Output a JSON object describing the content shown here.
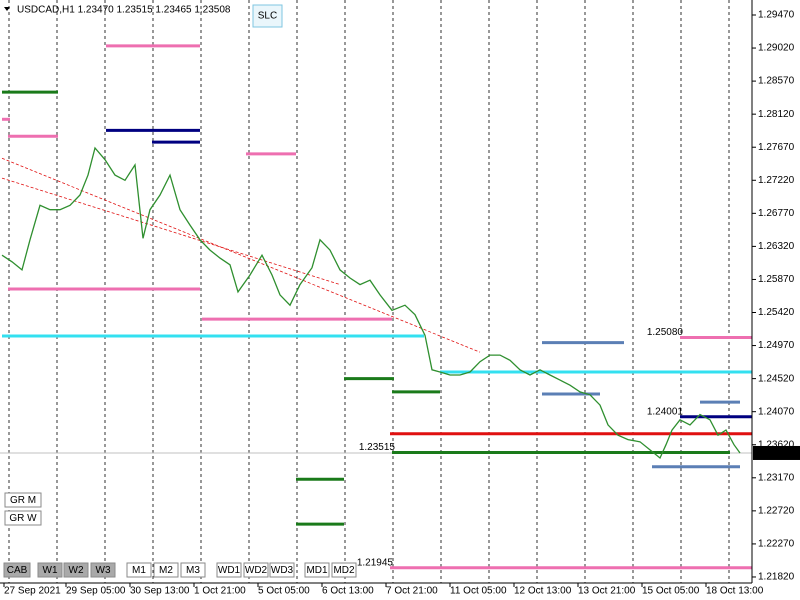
{
  "chart_data": {
    "type": "line",
    "title": "USDCAD,H1  1.23470 1.23515 1.23465 1.23508",
    "button": "SLC",
    "side_buttons": [
      "GR M",
      "GR W"
    ],
    "bottom_buttons": [
      "CAB",
      "W1",
      "W2",
      "W3",
      "M1",
      "M2",
      "M3",
      "WD1",
      "WD2",
      "WD3",
      "MD1",
      "MD2"
    ],
    "active_buttons": [
      "CAB",
      "W1",
      "W2",
      "W3"
    ],
    "color": "#2f8f2f",
    "x": [
      0,
      5,
      10,
      14,
      19,
      24,
      29,
      34,
      39,
      43,
      46.5,
      51.5,
      56.5,
      61.5,
      66.5,
      70.5,
      74,
      79,
      84,
      89,
      94,
      99,
      104,
      109,
      114,
      118,
      124,
      130,
      135,
      139,
      144,
      149,
      155,
      159,
      164,
      169,
      174,
      179,
      184,
      189,
      195,
      201.5,
      206.5,
      211.5,
      215,
      219,
      224,
      229,
      234,
      239,
      244,
      249,
      254,
      259,
      264,
      269,
      274,
      279,
      284,
      289,
      294,
      299,
      303,
      308,
      313,
      319,
      324,
      329,
      332,
      335,
      339,
      344,
      349,
      354,
      358,
      362,
      366,
      369
    ],
    "values": [
      1.262,
      1.2611,
      1.26,
      1.2641,
      1.2688,
      1.2682,
      1.2682,
      1.2688,
      1.2702,
      1.2729,
      1.2766,
      1.275,
      1.2729,
      1.2722,
      1.2743,
      1.2643,
      1.2682,
      1.2702,
      1.2729,
      1.2682,
      1.2661,
      1.2641,
      1.2627,
      1.2616,
      1.2607,
      1.257,
      1.2593,
      1.262,
      1.2593,
      1.2566,
      1.2552,
      1.258,
      1.2603,
      1.2641,
      1.2627,
      1.26,
      1.2589,
      1.258,
      1.2586,
      1.2566,
      1.2545,
      1.2552,
      1.2539,
      1.2511,
      1.2464,
      1.2461,
      1.2457,
      1.2457,
      1.2461,
      1.2475,
      1.2484,
      1.2484,
      1.2477,
      1.2464,
      1.2457,
      1.2464,
      1.2457,
      1.245,
      1.2443,
      1.2434,
      1.243,
      1.2416,
      1.2389,
      1.2375,
      1.2369,
      1.2366,
      1.2355,
      1.2344,
      1.2362,
      1.2382,
      1.2396,
      1.2389,
      1.2403,
      1.2396,
      1.2375,
      1.2382,
      1.2362,
      1.23508
    ],
    "bid": 1.23508,
    "xlim": [
      -1,
      375
    ],
    "ylim": [
      1.21738,
      1.29674
    ],
    "xticks": [
      {
        "value": 1,
        "label": "27 Sep 2021"
      },
      {
        "value": 32,
        "label": "29 Sep 05:00"
      },
      {
        "value": 64,
        "label": "30 Sep 13:00"
      },
      {
        "value": 96,
        "label": "1 Oct 21:00"
      },
      {
        "value": 128,
        "label": "5 Oct 05:00"
      },
      {
        "value": 160,
        "label": "6 Oct 13:00"
      },
      {
        "value": 192,
        "label": "7 Oct 21:00"
      },
      {
        "value": 224,
        "label": "11 Oct 05:00"
      },
      {
        "value": 256,
        "label": "12 Oct 13:00"
      },
      {
        "value": 288,
        "label": "13 Oct 21:00"
      },
      {
        "value": 320,
        "label": "15 Oct 05:00"
      },
      {
        "value": 352,
        "label": "18 Oct 13:00"
      }
    ],
    "yticks": [
      {
        "value": 1.2947,
        "label": "1.29470"
      },
      {
        "value": 1.2902,
        "label": "1.29020"
      },
      {
        "value": 1.2857,
        "label": "1.28570"
      },
      {
        "value": 1.2812,
        "label": "1.28120"
      },
      {
        "value": 1.2767,
        "label": "1.27670"
      },
      {
        "value": 1.2722,
        "label": "1.27220"
      },
      {
        "value": 1.2677,
        "label": "1.26770"
      },
      {
        "value": 1.2632,
        "label": "1.26320"
      },
      {
        "value": 1.2587,
        "label": "1.25870"
      },
      {
        "value": 1.2542,
        "label": "1.25420"
      },
      {
        "value": 1.2497,
        "label": "1.24970"
      },
      {
        "value": 1.2452,
        "label": "1.24520"
      },
      {
        "value": 1.2407,
        "label": "1.24070"
      },
      {
        "value": 1.2362,
        "label": "1.23620"
      },
      {
        "value": 1.2317,
        "label": "1.23170"
      },
      {
        "value": 1.2272,
        "label": "1.22720"
      },
      {
        "value": 1.2227,
        "label": "1.22270"
      },
      {
        "value": 1.2182,
        "label": "1.21820"
      }
    ],
    "separators": [
      3.5,
      27.5,
      51.5,
      75.5,
      99.5,
      123.5,
      147.5,
      171.5,
      195.5,
      219.5,
      243.5,
      267.5,
      291.5,
      315.5,
      339.5,
      363.5
    ],
    "levels": [
      {
        "color": "#ee6fb0",
        "price": 1.2905,
        "x": [
          52,
          99
        ]
      },
      {
        "color": "#1a7a1a",
        "price": 1.2842,
        "x": [
          0,
          28
        ]
      },
      {
        "color": "#ee6fb0",
        "price": 1.2805,
        "x": [
          0,
          4
        ]
      },
      {
        "color": "#ee6fb0",
        "price": 1.2782,
        "x": [
          3,
          28
        ]
      },
      {
        "color": "#000080",
        "price": 1.279,
        "x": [
          52,
          99
        ]
      },
      {
        "color": "#000080",
        "price": 1.2774,
        "x": [
          75,
          99
        ]
      },
      {
        "color": "#ee6fb0",
        "price": 1.2758,
        "x": [
          122,
          147
        ]
      },
      {
        "color": "#ee6fb0",
        "price": 1.2574,
        "x": [
          3,
          99
        ]
      },
      {
        "color": "#ee6fb0",
        "price": 1.2533,
        "x": [
          100,
          195
        ]
      },
      {
        "color": "#33e0f0",
        "price": 1.251,
        "x": [
          0,
          211
        ]
      },
      {
        "color": "#1a7a1a",
        "price": 1.2452,
        "x": [
          171,
          196
        ]
      },
      {
        "color": "#1a7a1a",
        "price": 1.2434,
        "x": [
          195,
          219
        ]
      },
      {
        "color": "#5b7fb5",
        "price": 1.2501,
        "x": [
          270,
          311
        ]
      },
      {
        "color": "#ee6fb0",
        "price": 1.2508,
        "x": [
          339,
          375
        ],
        "label": "1.25080"
      },
      {
        "color": "#33e0f0",
        "price": 1.2461,
        "x": [
          219,
          375
        ]
      },
      {
        "color": "#5b7fb5",
        "price": 1.2431,
        "x": [
          270,
          299
        ]
      },
      {
        "color": "#000080",
        "price": 1.24001,
        "x": [
          339,
          375
        ],
        "label": "1.24001"
      },
      {
        "color": "#e01010",
        "price": 1.2377,
        "x": [
          194,
          375
        ]
      },
      {
        "color": "#1a7a1a",
        "price": 1.23515,
        "x": [
          195,
          364
        ],
        "label": "1.23515"
      },
      {
        "color": "#1a7a1a",
        "price": 1.2315,
        "x": [
          147,
          171
        ]
      },
      {
        "color": "#1a7a1a",
        "price": 1.2254,
        "x": [
          147,
          171
        ]
      },
      {
        "color": "#ee6fb0",
        "price": 1.21945,
        "x": [
          194,
          375
        ],
        "label": "1.21945"
      },
      {
        "color": "#5b7fb5",
        "price": 1.2332,
        "x": [
          325,
          369
        ]
      },
      {
        "color": "#5b7fb5",
        "price": 1.242,
        "x": [
          349,
          369
        ]
      }
    ],
    "trendlines": [
      {
        "color": "#e01010",
        "x": [
          0,
          239
        ],
        "y": [
          1.2752,
          1.2488
        ]
      },
      {
        "color": "#e01010",
        "x": [
          0,
          169
        ],
        "y": [
          1.2725,
          1.258
        ]
      }
    ]
  }
}
